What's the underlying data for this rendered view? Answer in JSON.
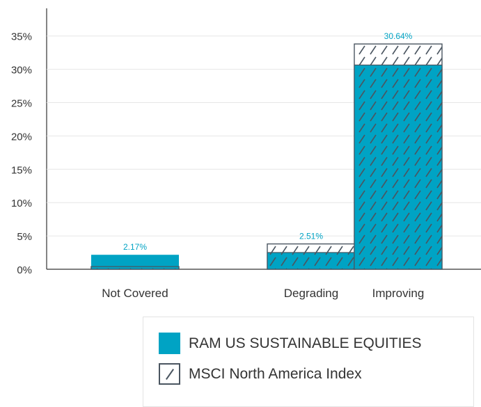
{
  "chart_data": {
    "type": "bar",
    "title": "",
    "xlabel": "",
    "ylabel": "",
    "ylim": [
      0,
      37
    ],
    "yticks": [
      "0%",
      "5%",
      "10%",
      "15%",
      "20%",
      "25%",
      "30%",
      "35%"
    ],
    "ytick_values": [
      0,
      5,
      10,
      15,
      20,
      25,
      30,
      35
    ],
    "categories": [
      "Not Covered",
      "Degrading",
      "Improving"
    ],
    "series": [
      {
        "name": "RAM US SUSTAINABLE EQUITIES",
        "values": [
          2.17,
          2.51,
          30.64
        ],
        "color": "#00a3c4",
        "labels": [
          "2.17%",
          "2.51%",
          "30.64%"
        ]
      },
      {
        "name": "MSCI North America Index",
        "values": [
          0.4,
          3.8,
          33.8
        ],
        "color": "#4a5560",
        "pattern": "hatched"
      }
    ],
    "grid": true,
    "legend_position": "bottom-right"
  }
}
